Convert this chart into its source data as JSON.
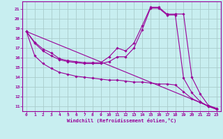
{
  "xlabel": "Windchill (Refroidissement éolien,°C)",
  "background_color": "#c8eef0",
  "line_color": "#990099",
  "grid_color": "#aacccc",
  "xlim": [
    -0.5,
    23.5
  ],
  "ylim": [
    10.5,
    21.8
  ],
  "xticks": [
    0,
    1,
    2,
    3,
    4,
    5,
    6,
    7,
    8,
    9,
    10,
    11,
    12,
    13,
    14,
    15,
    16,
    17,
    18,
    19,
    20,
    21,
    22,
    23
  ],
  "yticks": [
    11,
    12,
    13,
    14,
    15,
    16,
    17,
    18,
    19,
    20,
    21
  ],
  "lines": [
    {
      "x": [
        0,
        1,
        2,
        3,
        4,
        5,
        6,
        7,
        8,
        9,
        10,
        11,
        12,
        13,
        14,
        15,
        16,
        17,
        18,
        19,
        20,
        21,
        22,
        23
      ],
      "y": [
        18.7,
        17.6,
        16.9,
        16.5,
        15.9,
        15.7,
        15.6,
        15.5,
        15.5,
        15.5,
        16.1,
        17.0,
        16.7,
        17.5,
        19.3,
        21.2,
        21.2,
        20.5,
        20.5,
        20.5,
        14.0,
        12.3,
        11.1,
        10.8
      ],
      "has_markers": true
    },
    {
      "x": [
        0,
        1,
        2,
        3,
        4,
        5,
        6,
        7,
        8,
        9,
        10,
        11,
        12,
        13,
        14,
        15,
        16,
        17,
        18,
        19,
        20,
        21,
        22,
        23
      ],
      "y": [
        18.7,
        17.5,
        16.7,
        16.2,
        15.8,
        15.6,
        15.5,
        15.4,
        15.4,
        15.4,
        15.6,
        16.1,
        16.1,
        17.0,
        18.9,
        21.1,
        21.1,
        20.4,
        20.4,
        13.9,
        12.4,
        11.5,
        11.0,
        10.7
      ],
      "has_markers": true
    },
    {
      "x": [
        0,
        1,
        2,
        3,
        4,
        5,
        6,
        7,
        8,
        9,
        10,
        11,
        12,
        13,
        14,
        15,
        16,
        17,
        18,
        19,
        20,
        21,
        22,
        23
      ],
      "y": [
        18.7,
        16.2,
        15.4,
        14.9,
        14.5,
        14.3,
        14.1,
        14.0,
        13.9,
        13.8,
        13.7,
        13.7,
        13.6,
        13.5,
        13.5,
        13.4,
        13.3,
        13.3,
        13.2,
        12.5,
        11.8,
        11.4,
        11.0,
        10.7
      ],
      "has_markers": true
    }
  ],
  "diagonal": {
    "x": [
      0,
      23
    ],
    "y": [
      18.7,
      10.7
    ]
  }
}
